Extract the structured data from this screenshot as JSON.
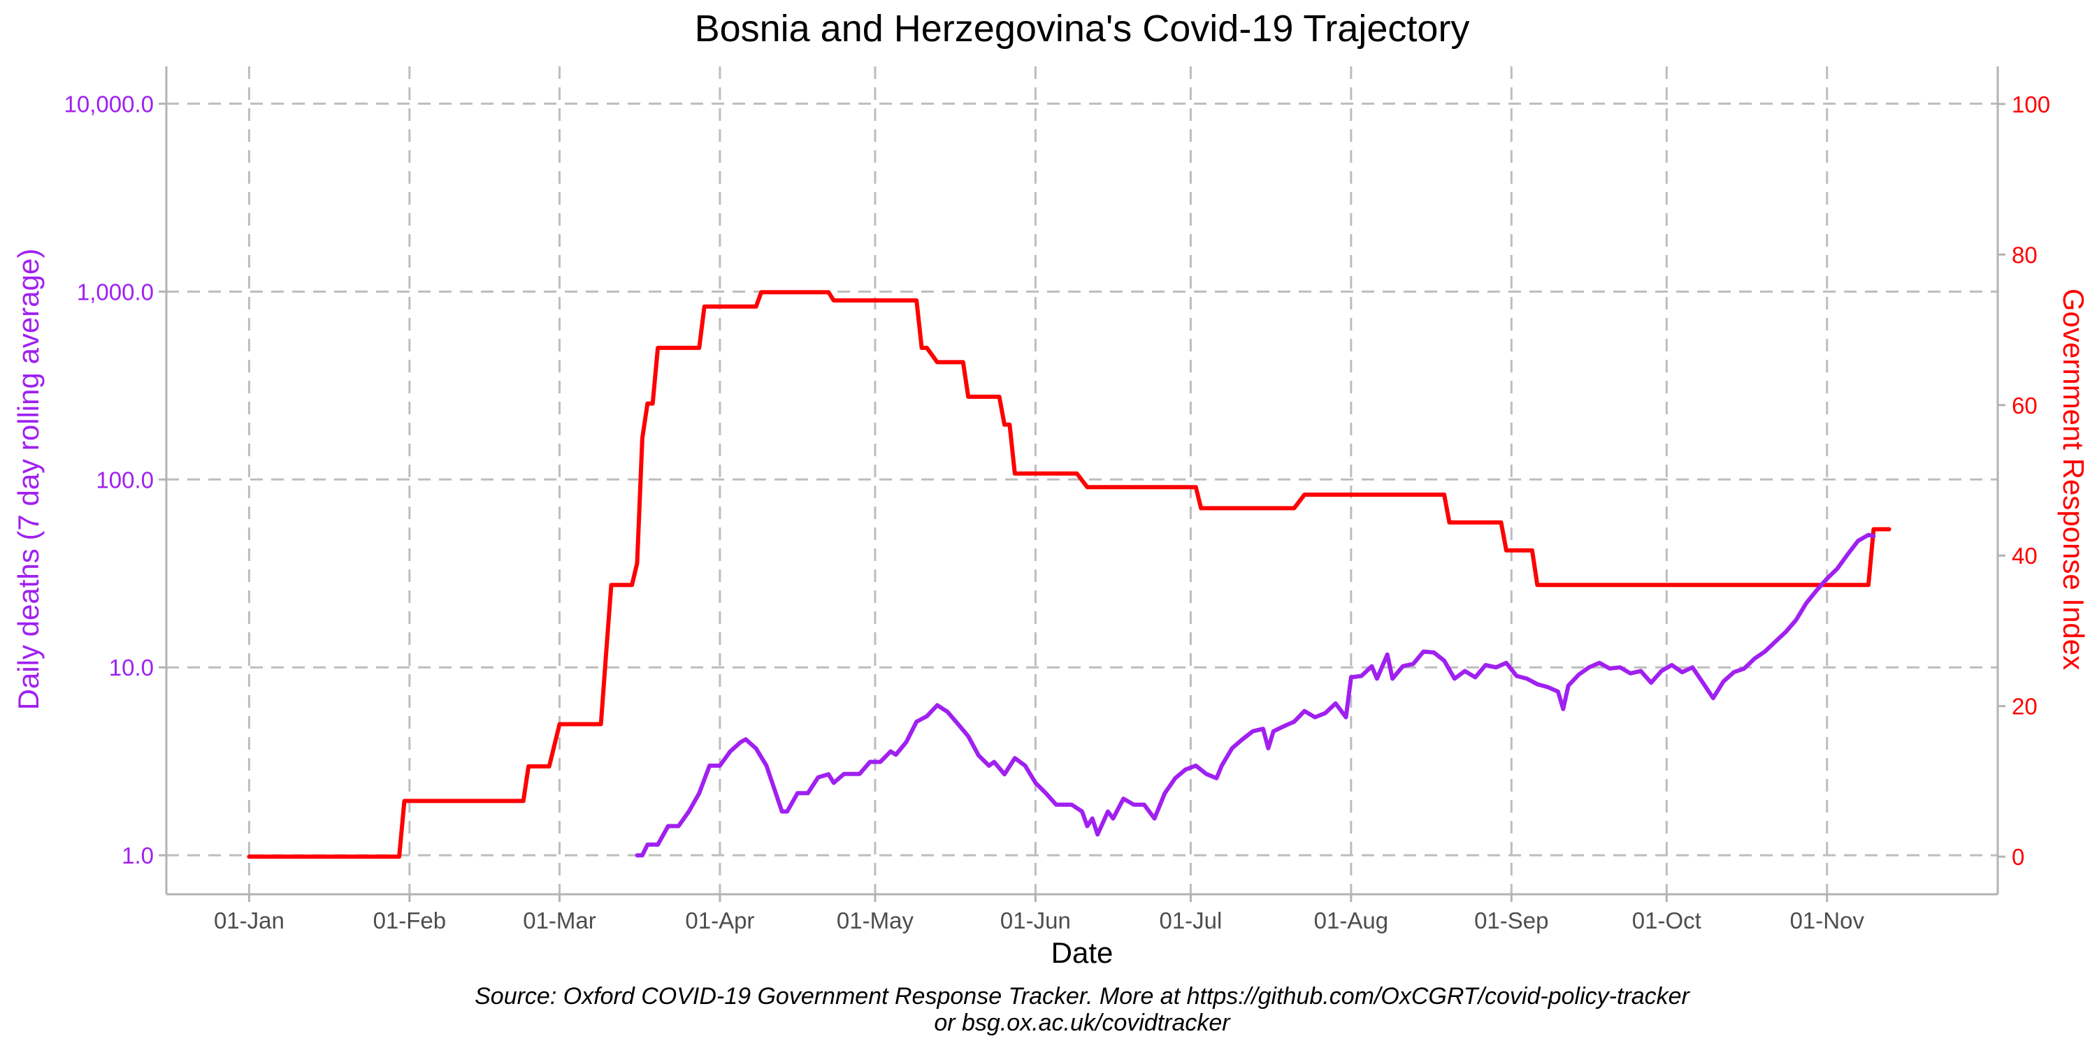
{
  "chart_data": {
    "type": "line",
    "title": "Bosnia and Herzegovina's Covid-19 Trajectory",
    "xlabel": "Date",
    "ylabel_left": "Daily deaths (7 day rolling average)",
    "ylabel_right": "Government Response Index",
    "caption_line1": "Source: Oxford COVID-19 Government Response Tracker. More at https://github.com/OxCGRT/covid-policy-tracker",
    "caption_line2": "or bsg.ox.ac.uk/covidtracker",
    "x_axis": {
      "ticks": [
        "2020-01-01",
        "2020-02-01",
        "2020-03-01",
        "2020-04-01",
        "2020-05-01",
        "2020-06-01",
        "2020-07-01",
        "2020-08-01",
        "2020-09-01",
        "2020-10-01",
        "2020-11-01"
      ],
      "tick_labels": [
        "01-Jan",
        "01-Feb",
        "01-Mar",
        "01-Apr",
        "01-May",
        "01-Jun",
        "01-Jul",
        "01-Aug",
        "01-Sep",
        "01-Oct",
        "01-Nov"
      ],
      "range": [
        "2019-12-16",
        "2020-12-04"
      ]
    },
    "y_left": {
      "scale": "log10",
      "range": [
        0.62,
        15800
      ],
      "ticks": [
        1,
        10,
        100,
        1000,
        10000
      ],
      "tick_labels": [
        "1.0",
        "10.0",
        "100.0",
        "1,000.0",
        "10,000.0"
      ],
      "color": "#a020f0"
    },
    "y_right": {
      "scale": "linear",
      "range": [
        -5,
        105
      ],
      "ticks": [
        0,
        20,
        40,
        60,
        80,
        100
      ],
      "tick_labels": [
        "0",
        "20",
        "40",
        "60",
        "80",
        "100"
      ],
      "color": "#ff0000"
    },
    "grid": true,
    "series": [
      {
        "name": "Government Response Index",
        "axis": "right",
        "color": "#ff0000",
        "points": [
          [
            "2020-01-01",
            0
          ],
          [
            "2020-01-30",
            0
          ],
          [
            "2020-01-31",
            7.4
          ],
          [
            "2020-02-23",
            7.4
          ],
          [
            "2020-02-24",
            12
          ],
          [
            "2020-02-28",
            12
          ],
          [
            "2020-03-01",
            17.6
          ],
          [
            "2020-03-09",
            17.6
          ],
          [
            "2020-03-10",
            27
          ],
          [
            "2020-03-11",
            36.1
          ],
          [
            "2020-03-15",
            36.1
          ],
          [
            "2020-03-16",
            39
          ],
          [
            "2020-03-17",
            55.6
          ],
          [
            "2020-03-18",
            60.2
          ],
          [
            "2020-03-19",
            60.2
          ],
          [
            "2020-03-20",
            67.6
          ],
          [
            "2020-03-28",
            67.6
          ],
          [
            "2020-03-29",
            73.1
          ],
          [
            "2020-04-08",
            73.1
          ],
          [
            "2020-04-09",
            75
          ],
          [
            "2020-04-22",
            75
          ],
          [
            "2020-04-23",
            73.9
          ],
          [
            "2020-05-09",
            73.9
          ],
          [
            "2020-05-10",
            67.6
          ],
          [
            "2020-05-11",
            67.6
          ],
          [
            "2020-05-13",
            65.7
          ],
          [
            "2020-05-18",
            65.7
          ],
          [
            "2020-05-19",
            61.1
          ],
          [
            "2020-05-25",
            61.1
          ],
          [
            "2020-05-26",
            57.4
          ],
          [
            "2020-05-27",
            57.4
          ],
          [
            "2020-05-28",
            50.9
          ],
          [
            "2020-06-09",
            50.9
          ],
          [
            "2020-06-11",
            49.1
          ],
          [
            "2020-07-02",
            49.1
          ],
          [
            "2020-07-03",
            46.3
          ],
          [
            "2020-07-21",
            46.3
          ],
          [
            "2020-07-23",
            48.1
          ],
          [
            "2020-08-19",
            48.1
          ],
          [
            "2020-08-20",
            44.4
          ],
          [
            "2020-08-30",
            44.4
          ],
          [
            "2020-08-31",
            40.7
          ],
          [
            "2020-09-05",
            40.7
          ],
          [
            "2020-09-06",
            36.1
          ],
          [
            "2020-11-09",
            36.1
          ],
          [
            "2020-11-10",
            43.5
          ],
          [
            "2020-11-13",
            43.5
          ]
        ]
      },
      {
        "name": "Daily deaths (7 day rolling average)",
        "axis": "left",
        "color": "#a020f0",
        "points": [
          [
            "2020-03-16",
            1
          ],
          [
            "2020-03-17",
            1
          ],
          [
            "2020-03-18",
            1.14
          ],
          [
            "2020-03-20",
            1.14
          ],
          [
            "2020-03-22",
            1.43
          ],
          [
            "2020-03-24",
            1.43
          ],
          [
            "2020-03-26",
            1.71
          ],
          [
            "2020-03-28",
            2.14
          ],
          [
            "2020-03-30",
            3.0
          ],
          [
            "2020-04-01",
            3.0
          ],
          [
            "2020-04-03",
            3.57
          ],
          [
            "2020-04-05",
            4.0
          ],
          [
            "2020-04-06",
            4.14
          ],
          [
            "2020-04-08",
            3.7
          ],
          [
            "2020-04-10",
            3.0
          ],
          [
            "2020-04-13",
            1.71
          ],
          [
            "2020-04-14",
            1.71
          ],
          [
            "2020-04-16",
            2.14
          ],
          [
            "2020-04-18",
            2.14
          ],
          [
            "2020-04-20",
            2.6
          ],
          [
            "2020-04-22",
            2.7
          ],
          [
            "2020-04-23",
            2.43
          ],
          [
            "2020-04-25",
            2.71
          ],
          [
            "2020-04-28",
            2.71
          ],
          [
            "2020-04-30",
            3.14
          ],
          [
            "2020-05-02",
            3.14
          ],
          [
            "2020-05-04",
            3.57
          ],
          [
            "2020-05-05",
            3.43
          ],
          [
            "2020-05-07",
            4.0
          ],
          [
            "2020-05-09",
            5.14
          ],
          [
            "2020-05-11",
            5.5
          ],
          [
            "2020-05-13",
            6.29
          ],
          [
            "2020-05-15",
            5.8
          ],
          [
            "2020-05-17",
            5.0
          ],
          [
            "2020-05-19",
            4.3
          ],
          [
            "2020-05-21",
            3.4
          ],
          [
            "2020-05-23",
            3.0
          ],
          [
            "2020-05-24",
            3.14
          ],
          [
            "2020-05-26",
            2.7
          ],
          [
            "2020-05-28",
            3.29
          ],
          [
            "2020-05-30",
            3.0
          ],
          [
            "2020-06-01",
            2.43
          ],
          [
            "2020-06-03",
            2.14
          ],
          [
            "2020-06-05",
            1.86
          ],
          [
            "2020-06-08",
            1.86
          ],
          [
            "2020-06-10",
            1.71
          ],
          [
            "2020-06-11",
            1.43
          ],
          [
            "2020-06-12",
            1.57
          ],
          [
            "2020-06-13",
            1.29
          ],
          [
            "2020-06-15",
            1.71
          ],
          [
            "2020-06-16",
            1.57
          ],
          [
            "2020-06-18",
            2.0
          ],
          [
            "2020-06-20",
            1.86
          ],
          [
            "2020-06-22",
            1.86
          ],
          [
            "2020-06-24",
            1.57
          ],
          [
            "2020-06-26",
            2.14
          ],
          [
            "2020-06-28",
            2.57
          ],
          [
            "2020-06-30",
            2.86
          ],
          [
            "2020-07-02",
            3.0
          ],
          [
            "2020-07-04",
            2.71
          ],
          [
            "2020-07-06",
            2.57
          ],
          [
            "2020-07-07",
            3.0
          ],
          [
            "2020-07-09",
            3.71
          ],
          [
            "2020-07-11",
            4.14
          ],
          [
            "2020-07-13",
            4.57
          ],
          [
            "2020-07-15",
            4.71
          ],
          [
            "2020-07-16",
            3.71
          ],
          [
            "2020-07-17",
            4.57
          ],
          [
            "2020-07-19",
            4.86
          ],
          [
            "2020-07-21",
            5.14
          ],
          [
            "2020-07-23",
            5.86
          ],
          [
            "2020-07-25",
            5.43
          ],
          [
            "2020-07-27",
            5.71
          ],
          [
            "2020-07-29",
            6.43
          ],
          [
            "2020-07-31",
            5.43
          ],
          [
            "2020-08-01",
            8.86
          ],
          [
            "2020-08-03",
            9.0
          ],
          [
            "2020-08-05",
            10.14
          ],
          [
            "2020-08-06",
            8.71
          ],
          [
            "2020-08-08",
            11.71
          ],
          [
            "2020-08-09",
            8.71
          ],
          [
            "2020-08-11",
            10.14
          ],
          [
            "2020-08-13",
            10.43
          ],
          [
            "2020-08-15",
            12.14
          ],
          [
            "2020-08-17",
            12.0
          ],
          [
            "2020-08-19",
            10.86
          ],
          [
            "2020-08-21",
            8.71
          ],
          [
            "2020-08-23",
            9.57
          ],
          [
            "2020-08-25",
            8.86
          ],
          [
            "2020-08-27",
            10.29
          ],
          [
            "2020-08-29",
            10.0
          ],
          [
            "2020-08-31",
            10.57
          ],
          [
            "2020-09-02",
            9.0
          ],
          [
            "2020-09-04",
            8.71
          ],
          [
            "2020-09-06",
            8.14
          ],
          [
            "2020-09-08",
            7.86
          ],
          [
            "2020-09-10",
            7.43
          ],
          [
            "2020-09-11",
            6.0
          ],
          [
            "2020-09-12",
            8.0
          ],
          [
            "2020-09-14",
            9.14
          ],
          [
            "2020-09-16",
            10.0
          ],
          [
            "2020-09-18",
            10.57
          ],
          [
            "2020-09-20",
            9.86
          ],
          [
            "2020-09-22",
            10.0
          ],
          [
            "2020-09-24",
            9.29
          ],
          [
            "2020-09-26",
            9.57
          ],
          [
            "2020-09-28",
            8.29
          ],
          [
            "2020-09-30",
            9.57
          ],
          [
            "2020-10-02",
            10.29
          ],
          [
            "2020-10-04",
            9.43
          ],
          [
            "2020-10-06",
            10.0
          ],
          [
            "2020-10-08",
            8.29
          ],
          [
            "2020-10-10",
            6.86
          ],
          [
            "2020-10-12",
            8.43
          ],
          [
            "2020-10-14",
            9.43
          ],
          [
            "2020-10-16",
            9.86
          ],
          [
            "2020-10-18",
            11.14
          ],
          [
            "2020-10-20",
            12.14
          ],
          [
            "2020-10-22",
            13.71
          ],
          [
            "2020-10-24",
            15.43
          ],
          [
            "2020-10-26",
            17.86
          ],
          [
            "2020-10-28",
            22.0
          ],
          [
            "2020-10-30",
            25.71
          ],
          [
            "2020-11-01",
            29.71
          ],
          [
            "2020-11-03",
            33.57
          ],
          [
            "2020-11-05",
            40.0
          ],
          [
            "2020-11-07",
            47.14
          ],
          [
            "2020-11-09",
            50.71
          ],
          [
            "2020-11-10",
            50.0
          ]
        ]
      }
    ]
  }
}
